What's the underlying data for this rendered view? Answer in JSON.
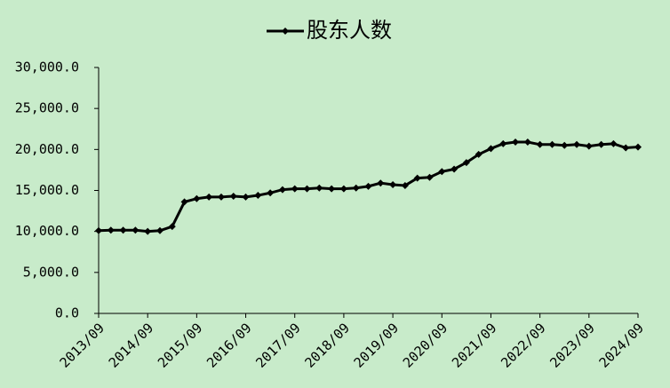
{
  "chart_data": {
    "type": "line",
    "categories": [
      "2013/09",
      null,
      null,
      null,
      "2014/09",
      null,
      null,
      null,
      "2015/09",
      null,
      null,
      null,
      "2016/09",
      null,
      null,
      null,
      "2017/09",
      null,
      null,
      null,
      "2018/09",
      null,
      null,
      null,
      "2019/09",
      null,
      null,
      null,
      "2020/09",
      null,
      null,
      null,
      "2021/09",
      null,
      null,
      null,
      "2022/09",
      null,
      null,
      null,
      "2023/09",
      null,
      null,
      null,
      "2024/09"
    ],
    "series": [
      {
        "name": "股东人数",
        "color": "#000000",
        "values": [
          10100,
          10150,
          10150,
          10150,
          10000,
          10100,
          10600,
          13600,
          14000,
          14200,
          14200,
          14300,
          14200,
          14400,
          14700,
          15100,
          15200,
          15200,
          15300,
          15200,
          15200,
          15300,
          15500,
          15900,
          15700,
          15600,
          16500,
          16600,
          17300,
          17600,
          18400,
          19400,
          20100,
          20700,
          20900,
          20900,
          20600,
          20600,
          20500,
          20600,
          20400,
          20600,
          20700,
          20200,
          20300
        ]
      }
    ],
    "ylim": [
      0,
      30000
    ],
    "yticks": [
      {
        "value": 0,
        "label": "0.0"
      },
      {
        "value": 5000,
        "label": "5,000.0"
      },
      {
        "value": 10000,
        "label": "10,000.0"
      },
      {
        "value": 15000,
        "label": "15,000.0"
      },
      {
        "value": 20000,
        "label": "20,000.0"
      },
      {
        "value": 25000,
        "label": "25,000.0"
      },
      {
        "value": 30000,
        "label": "30,000.0"
      }
    ],
    "legend": "top"
  }
}
